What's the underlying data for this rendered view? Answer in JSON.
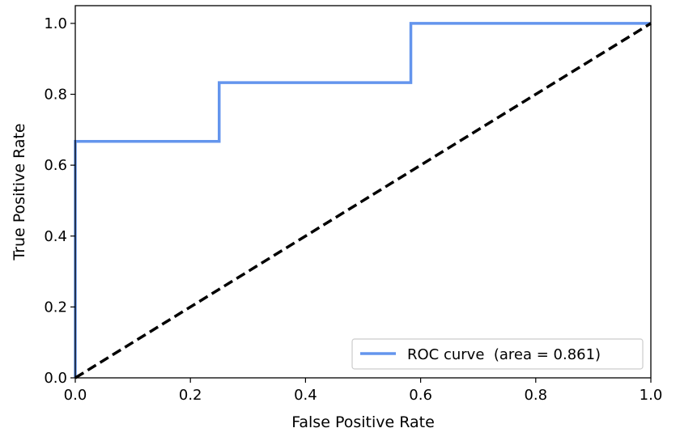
{
  "chart_data": {
    "type": "line",
    "title": "",
    "xlabel": "False Positive Rate",
    "ylabel": "True Positive Rate",
    "xlim": [
      0.0,
      1.0
    ],
    "ylim": [
      0.0,
      1.05
    ],
    "xticks": [
      "0.0",
      "0.2",
      "0.4",
      "0.6",
      "0.8",
      "1.0"
    ],
    "yticks": [
      "0.0",
      "0.2",
      "0.4",
      "0.6",
      "0.8",
      "1.0"
    ],
    "grid": false,
    "legend_position": "lower-right",
    "series": [
      {
        "name": "ROC curve  (area = 0.861)",
        "color": "#6495ED",
        "style": "solid",
        "x": [
          0.0,
          0.0,
          0.0,
          0.25,
          0.25,
          0.583,
          0.583,
          1.0
        ],
        "y": [
          0.0,
          0.0,
          0.667,
          0.667,
          0.833,
          0.833,
          1.0,
          1.0
        ]
      },
      {
        "color": "#000000",
        "style": "dashed",
        "x": [
          0.0,
          1.0
        ],
        "y": [
          0.0,
          1.0
        ]
      }
    ]
  }
}
